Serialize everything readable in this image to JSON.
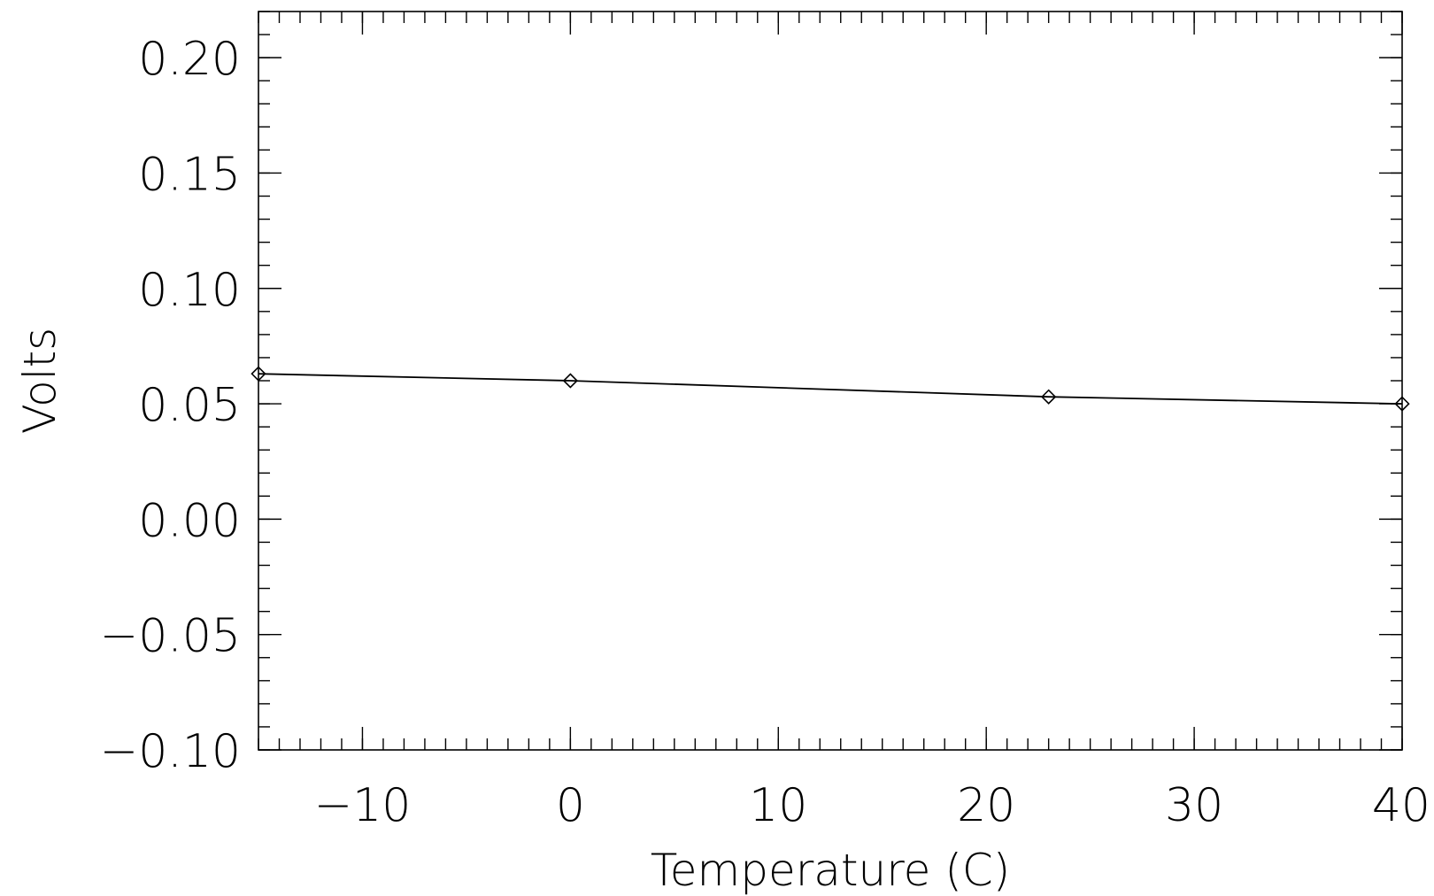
{
  "chart_data": {
    "type": "line",
    "title": "",
    "xlabel": "Temperature (C)",
    "ylabel": "Volts",
    "xlim": [
      -15,
      40
    ],
    "ylim": [
      -0.1,
      0.22
    ],
    "xticks": [
      -10,
      0,
      10,
      20,
      30,
      40
    ],
    "xtick_labels": [
      "−10",
      "0",
      "10",
      "20",
      "30",
      "40"
    ],
    "yticks": [
      -0.1,
      -0.05,
      0.0,
      0.05,
      0.1,
      0.15,
      0.2
    ],
    "ytick_labels": [
      "−0.10",
      "−0.05",
      "0.00",
      "0.05",
      "0.10",
      "0.15",
      "0.20"
    ],
    "grid": false,
    "series": [
      {
        "x": [
          -15,
          0,
          23,
          40
        ],
        "y": [
          0.063,
          0.06,
          0.053,
          0.05
        ],
        "marker": "diamond",
        "color": "#000000"
      }
    ]
  }
}
